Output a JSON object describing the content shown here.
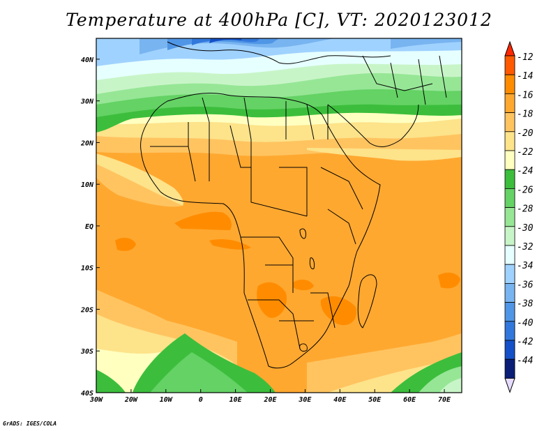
{
  "title": "Temperature at 400hPa [C], VT: 2020123012",
  "credit": "GrADS: IGES/COLA",
  "map": {
    "lon_range": [
      -30,
      75
    ],
    "lat_range": [
      -40,
      45
    ],
    "x_ticks": [
      {
        "lon": -30,
        "label": "30W"
      },
      {
        "lon": -20,
        "label": "20W"
      },
      {
        "lon": -10,
        "label": "10W"
      },
      {
        "lon": 0,
        "label": "0"
      },
      {
        "lon": 10,
        "label": "10E"
      },
      {
        "lon": 20,
        "label": "20E"
      },
      {
        "lon": 30,
        "label": "30E"
      },
      {
        "lon": 40,
        "label": "40E"
      },
      {
        "lon": 50,
        "label": "50E"
      },
      {
        "lon": 60,
        "label": "60E"
      },
      {
        "lon": 70,
        "label": "70E"
      }
    ],
    "y_ticks": [
      {
        "lat": 40,
        "label": "40N"
      },
      {
        "lat": 30,
        "label": "30N"
      },
      {
        "lat": 20,
        "label": "20N"
      },
      {
        "lat": 10,
        "label": "10N"
      },
      {
        "lat": 0,
        "label": "EQ"
      },
      {
        "lat": -10,
        "label": "10S"
      },
      {
        "lat": -20,
        "label": "20S"
      },
      {
        "lat": -30,
        "label": "30S"
      },
      {
        "lat": -40,
        "label": "40S"
      }
    ]
  },
  "colorbar": {
    "levels": [
      "-12",
      "-14",
      "-16",
      "-18",
      "-20",
      "-22",
      "-24",
      "-26",
      "-28",
      "-30",
      "-32",
      "-34",
      "-36",
      "-38",
      "-40",
      "-42",
      "-44"
    ],
    "colors": [
      "#ff5a00",
      "#ff8c00",
      "#ffa830",
      "#ffc460",
      "#fde38a",
      "#ffffc0",
      "#3cbe3c",
      "#64d264",
      "#96e696",
      "#c8f5c8",
      "#e6ffff",
      "#a0d2ff",
      "#78b4f0",
      "#5096e6",
      "#3278dc",
      "#1450c8",
      "#0a1e78"
    ],
    "top_color": "#ff2800",
    "bottom_color": "#e6dcff"
  },
  "zone_colors": {
    "T12": "#ff5a00",
    "T14": "#ff8c00",
    "T16": "#ffa830",
    "T18": "#ffc460",
    "T20": "#fde38a",
    "T22": "#ffffc0",
    "T24": "#3cbe3c",
    "T26": "#64d264",
    "T28": "#96e696",
    "T30": "#c8f5c8",
    "T32": "#e6ffff",
    "T34": "#a0d2ff",
    "T36": "#78b4f0",
    "T38": "#5096e6",
    "T40": "#3278dc",
    "T42": "#1450c8"
  }
}
